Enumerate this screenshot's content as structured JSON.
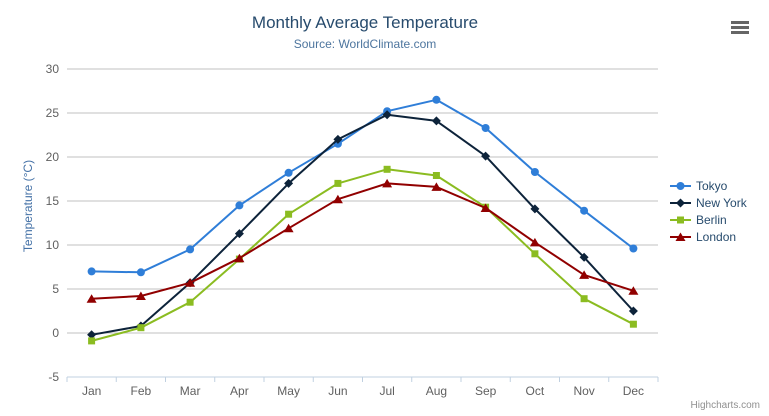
{
  "chart_data": {
    "type": "line",
    "title": "Monthly Average Temperature",
    "subtitle": "Source: WorldClimate.com",
    "credits": "Highcharts.com",
    "xlabel": "",
    "ylabel": "Temperature (°C)",
    "categories": [
      "Jan",
      "Feb",
      "Mar",
      "Apr",
      "May",
      "Jun",
      "Jul",
      "Aug",
      "Sep",
      "Oct",
      "Nov",
      "Dec"
    ],
    "yticks": [
      -5,
      0,
      5,
      10,
      15,
      20,
      25,
      30
    ],
    "ylim": [
      -5,
      30
    ],
    "grid": true,
    "legend_position": "right",
    "colors": {
      "grid": "#C0C0C0",
      "axis_line": "#C0D0E0",
      "tick_label": "#606060",
      "title": "#274b6d",
      "subtitle": "#4d759e",
      "y_axis_title": "#4572A7",
      "legend_text": "#274b6d",
      "credits": "#909090",
      "menu_icon": "#666666",
      "background": "#FFFFFF"
    },
    "series": [
      {
        "name": "Tokyo",
        "color": "#2f7ed8",
        "marker": "circle",
        "values": [
          7.0,
          6.9,
          9.5,
          14.5,
          18.2,
          21.5,
          25.2,
          26.5,
          23.3,
          18.3,
          13.9,
          9.6
        ]
      },
      {
        "name": "New York",
        "color": "#0d233a",
        "marker": "diamond",
        "values": [
          -0.2,
          0.8,
          5.7,
          11.3,
          17.0,
          22.0,
          24.8,
          24.1,
          20.1,
          14.1,
          8.6,
          2.5
        ]
      },
      {
        "name": "Berlin",
        "color": "#8bbc21",
        "marker": "square",
        "values": [
          -0.9,
          0.6,
          3.5,
          8.4,
          13.5,
          17.0,
          18.6,
          17.9,
          14.3,
          9.0,
          3.9,
          1.0
        ]
      },
      {
        "name": "London",
        "color": "#910000",
        "marker": "triangle",
        "values": [
          3.9,
          4.2,
          5.7,
          8.5,
          11.9,
          15.2,
          17.0,
          16.6,
          14.2,
          10.3,
          6.6,
          4.8
        ]
      }
    ]
  }
}
